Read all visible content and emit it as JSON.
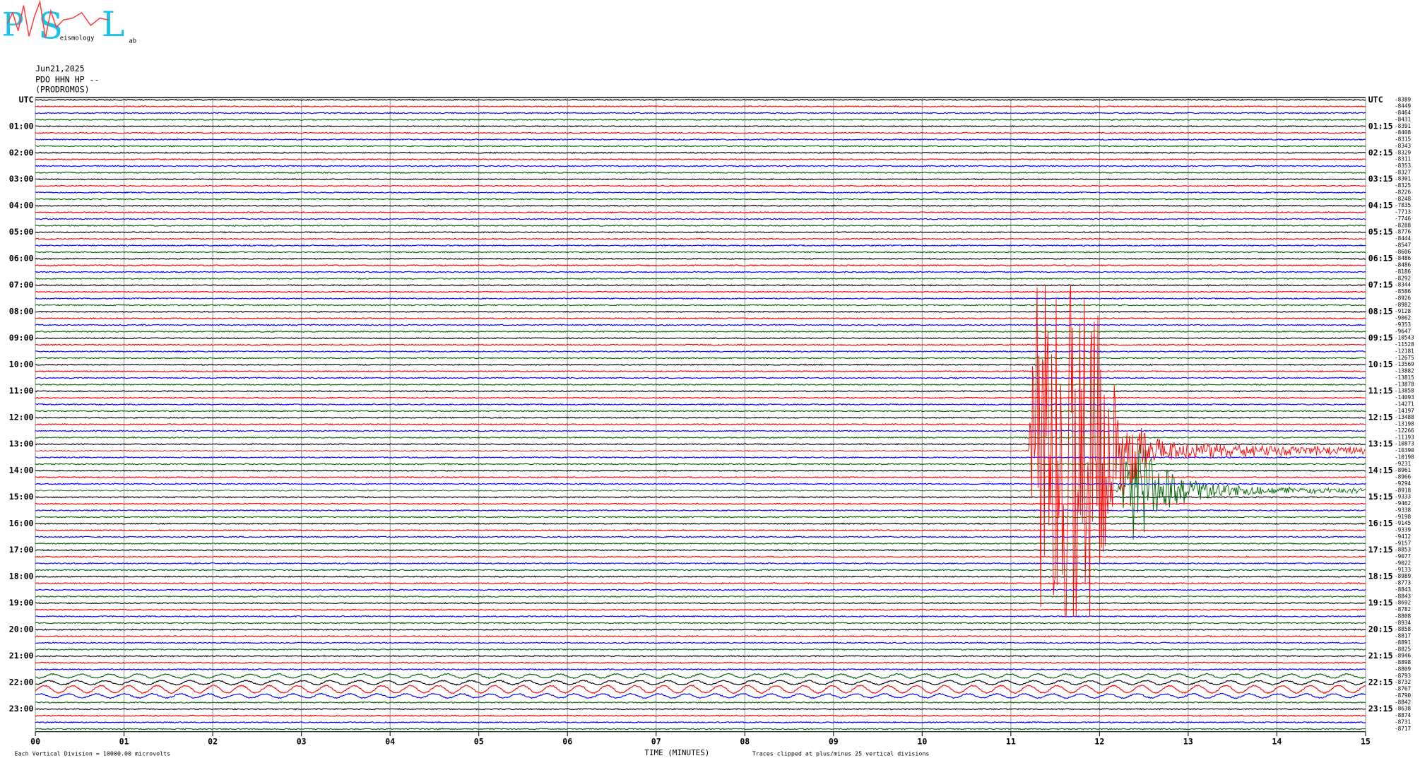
{
  "logo": {
    "letters": [
      "P",
      "S",
      "L"
    ],
    "words": [
      "eismology",
      "ab"
    ]
  },
  "chart_data": {
    "type": "helicorder",
    "date": "Jun21,2025",
    "station": "PDO HHN HP --",
    "location": "(PRODROMOS)",
    "left_labels": [
      "UTC",
      "01:00",
      "02:00",
      "03:00",
      "04:00",
      "05:00",
      "06:00",
      "07:00",
      "08:00",
      "09:00",
      "10:00",
      "11:00",
      "12:00",
      "13:00",
      "14:00",
      "15:00",
      "16:00",
      "17:00",
      "18:00",
      "19:00",
      "20:00",
      "21:00",
      "22:00",
      "23:00"
    ],
    "right_labels": [
      "UTC",
      "01:15",
      "02:15",
      "03:15",
      "04:15",
      "05:15",
      "06:15",
      "07:15",
      "08:15",
      "09:15",
      "10:15",
      "11:15",
      "12:15",
      "13:15",
      "14:15",
      "15:15",
      "16:15",
      "17:15",
      "18:15",
      "19:15",
      "20:15",
      "21:15",
      "22:15",
      "23:15"
    ],
    "offsets": [
      -8389,
      -8449,
      -8464,
      -8431,
      -8391,
      -8408,
      -8315,
      -8343,
      -8329,
      -8311,
      -8353,
      -8327,
      -8301,
      -8325,
      -8226,
      -8248,
      -7835,
      -7713,
      -7746,
      -8288,
      -8776,
      -8444,
      -8547,
      -8606,
      -8486,
      -8486,
      -8186,
      -8292,
      -8344,
      -8586,
      -8926,
      -8982,
      -9128,
      -9062,
      -9353,
      -9647,
      -10543,
      -11528,
      -12181,
      -12675,
      -13569,
      -13882,
      -13815,
      -13878,
      -13858,
      -14093,
      -14271,
      -14197,
      -13488,
      -13198,
      -12266,
      -11193,
      -10873,
      -10390,
      -10198,
      -9231,
      -8961,
      -8966,
      -9294,
      -8918,
      -9333,
      -9462,
      -9338,
      -9198,
      -9145,
      -9339,
      -9412,
      -9157,
      -8853,
      -9077,
      -9022,
      -9133,
      -8989,
      -8773,
      -8843,
      -8843,
      -8692,
      -8782,
      -8808,
      -8934,
      -8858,
      -8817,
      -8891,
      -8825,
      -8946,
      -8898,
      -8809,
      -8793,
      -8732,
      -8767,
      -8790,
      -8842,
      -8638,
      -8874,
      -8731,
      -8717
    ],
    "trace_colors": [
      "#000000",
      "#ff0000",
      "#0000ff",
      "#006400"
    ],
    "x_label": "TIME (MINUTES)",
    "xlim": [
      0,
      15
    ],
    "xticks": [
      {
        "value": 0,
        "label": "00"
      },
      {
        "value": 1,
        "label": "01"
      },
      {
        "value": 2,
        "label": "02"
      },
      {
        "value": 3,
        "label": "03"
      },
      {
        "value": 4,
        "label": "04"
      },
      {
        "value": 5,
        "label": "05"
      },
      {
        "value": 6,
        "label": "06"
      },
      {
        "value": 7,
        "label": "07"
      },
      {
        "value": 8,
        "label": "08"
      },
      {
        "value": 9,
        "label": "09"
      },
      {
        "value": 10,
        "label": "10"
      },
      {
        "value": 11,
        "label": "11"
      },
      {
        "value": 12,
        "label": "12"
      },
      {
        "value": 13,
        "label": "13"
      },
      {
        "value": 14,
        "label": "14"
      },
      {
        "value": 15,
        "label": "15"
      }
    ],
    "footer_left": "Each Vertical Division = 10000.00 microvolts",
    "footer_right": "Traces clipped at plus/minus 25 vertical divisions",
    "grid": true
  }
}
